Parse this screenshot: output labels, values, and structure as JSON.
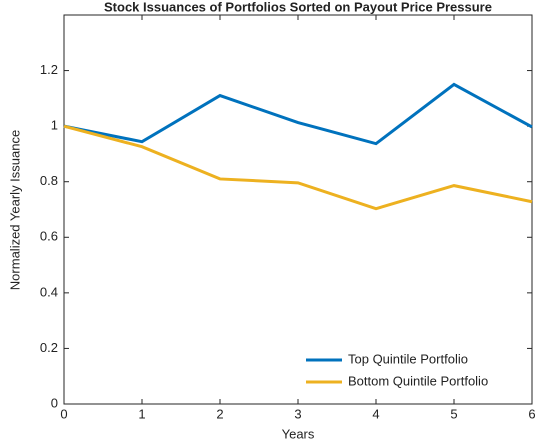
{
  "chart_data": {
    "type": "line",
    "title": "Stock Issuances of Portfolios Sorted on Payout Price Pressure",
    "x_label": "Years",
    "y_label": "Normalized Yearly Issuance",
    "x": [
      0,
      1,
      2,
      3,
      4,
      5,
      6
    ],
    "series": [
      {
        "name": "Top Quintile Portfolio",
        "color": "#0072bd",
        "values": [
          1,
          0.944,
          1.11,
          1.013,
          0.937,
          1.15,
          0.997
        ]
      },
      {
        "name": "Bottom Quintile Portfolio",
        "color": "#edb120",
        "values": [
          1,
          0.926,
          0.81,
          0.796,
          0.703,
          0.786,
          0.728
        ]
      }
    ],
    "xlim": [
      0,
      6
    ],
    "xticks": [
      0,
      1,
      2,
      3,
      4,
      5,
      6
    ],
    "ylim": [
      0,
      1.4
    ],
    "yticks": [
      0,
      0.2,
      0.4,
      0.6,
      0.8,
      1,
      1.2
    ],
    "grid": false,
    "legend": "lower-right"
  }
}
